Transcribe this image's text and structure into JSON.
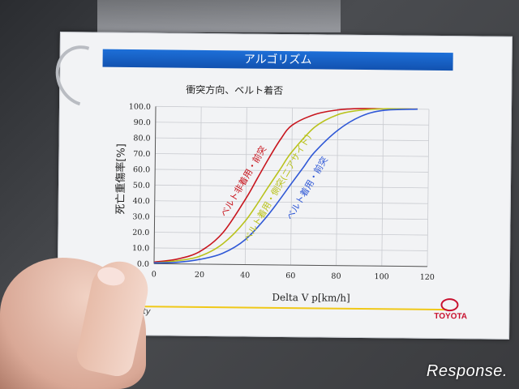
{
  "sheet": {
    "title": "アルゴリズム",
    "subtitle": "衝突方向、ベルト着否",
    "footer_left": "ited Safety",
    "brand": "TOYOTA"
  },
  "watermark": "Response.",
  "colors": {
    "title_bar": "#1a63c9",
    "footer_line": "#f0c818",
    "brand": "#c8102e",
    "unbelted_front": "#c8161e",
    "belted_near_side": "#b9c21c",
    "belted_front": "#2f58d6"
  },
  "chart_data": {
    "type": "line",
    "title": "衝突方向、ベルト着否",
    "xlabel": "Delta V p[km/h]",
    "ylabel": "死亡重傷率[%]",
    "xlim": [
      0,
      120
    ],
    "ylim": [
      0,
      100
    ],
    "xticks": [
      "0",
      "20",
      "40",
      "60",
      "80",
      "100",
      "120"
    ],
    "yticks": [
      "0.0",
      "10.0",
      "20.0",
      "30.0",
      "40.0",
      "50.0",
      "60.0",
      "70.0",
      "80.0",
      "90.0",
      "100.0"
    ],
    "grid": true,
    "series": [
      {
        "name": "ベルト非着用・前突",
        "color": "#c8161e",
        "x": [
          0,
          10,
          20,
          30,
          40,
          45,
          50,
          55,
          60,
          70,
          80,
          90,
          100,
          115
        ],
        "y": [
          1,
          3,
          8,
          20,
          42,
          55,
          68,
          80,
          89,
          96,
          99,
          100,
          100,
          100
        ]
      },
      {
        "name": "ベルト着用・側突(ニアサイド)",
        "color": "#b9c21c",
        "x": [
          0,
          10,
          20,
          30,
          40,
          50,
          55,
          60,
          70,
          80,
          90,
          100,
          115
        ],
        "y": [
          0.5,
          2,
          5,
          13,
          28,
          50,
          61,
          72,
          88,
          96,
          99,
          100,
          100
        ]
      },
      {
        "name": "ベルト着用・前突",
        "color": "#2f58d6",
        "x": [
          0,
          10,
          20,
          30,
          40,
          50,
          60,
          65,
          70,
          80,
          90,
          100,
          115
        ],
        "y": [
          0.5,
          1,
          3,
          7,
          16,
          32,
          52,
          62,
          72,
          86,
          95,
          99,
          100
        ]
      }
    ]
  }
}
